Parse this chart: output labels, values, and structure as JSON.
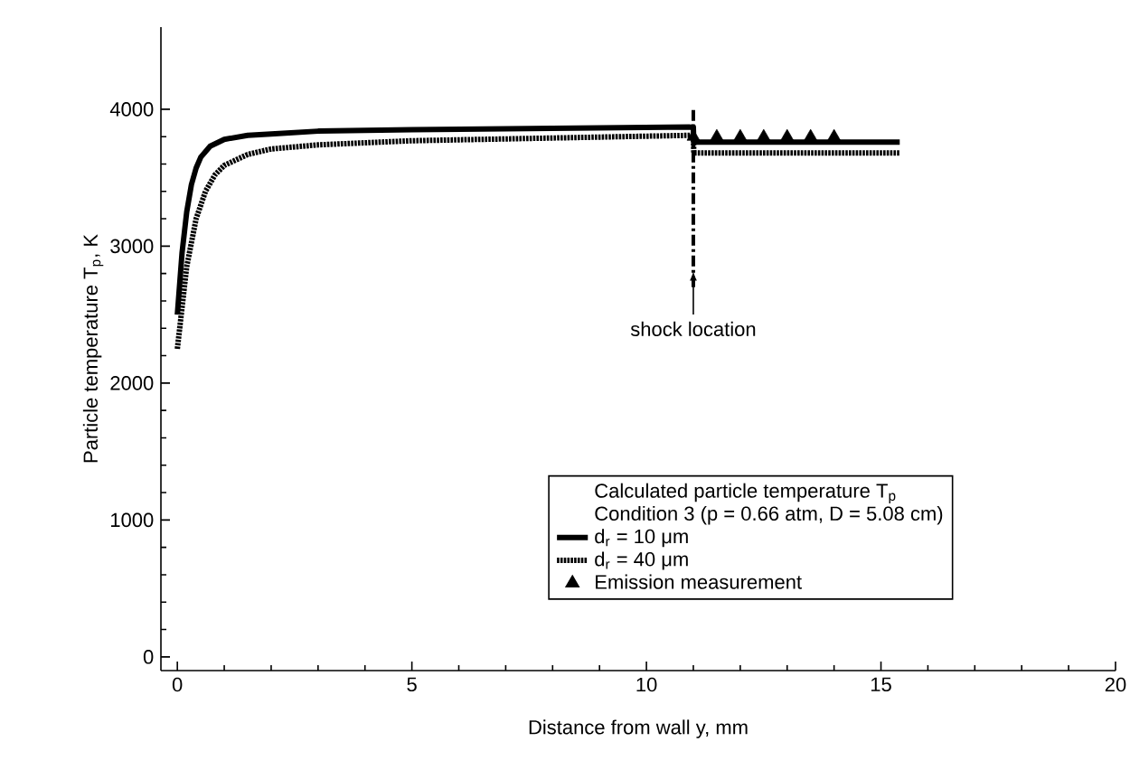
{
  "chart_data": {
    "type": "line",
    "xlabel": "Distance from wall y, mm",
    "ylabel": "Particle temperature T$_{p}$, K",
    "legend_title": "Calculated particle temperature T$_{p}$",
    "annotations": [
      "Condition 3 (p = 0.66 atm, D = 5.08 cm)"
    ],
    "xlim": [
      -0.35,
      20
    ],
    "ylim": [
      -100,
      4600
    ],
    "xticks": [
      0,
      5,
      10,
      15,
      20
    ],
    "yticks": [
      0,
      1000,
      2000,
      3000,
      4000
    ],
    "ref_lines": [
      {
        "axis": "x",
        "value": 11,
        "line_style": "dashdot",
        "color": "#000000",
        "label": "shock location"
      }
    ],
    "legend": "bottom right",
    "grid": false,
    "series": [
      {
        "name": "d$_{r}$ = 10 μm",
        "color": "#000000",
        "line_style": "solid",
        "x": [
          0,
          0.1,
          0.2,
          0.3,
          0.4,
          0.5,
          0.7,
          1,
          1.5,
          2,
          3,
          5,
          8,
          11,
          11.01,
          13,
          15.4
        ],
        "values": [
          2500,
          2950,
          3250,
          3450,
          3570,
          3650,
          3730,
          3780,
          3810,
          3820,
          3840,
          3850,
          3860,
          3870,
          3760,
          3760,
          3760
        ]
      },
      {
        "name": "d$_{r}$ = 40 μm",
        "color": "#000000",
        "line_style": "dotted",
        "x": [
          0,
          0.1,
          0.2,
          0.4,
          0.6,
          0.8,
          1,
          1.5,
          2,
          3,
          5,
          8,
          11,
          11.01,
          13,
          15.4
        ],
        "values": [
          2250,
          2550,
          2850,
          3200,
          3400,
          3520,
          3590,
          3670,
          3710,
          3740,
          3770,
          3790,
          3810,
          3680,
          3680,
          3680
        ]
      },
      {
        "name": "Emission measurement",
        "type": "scatter",
        "marker": "triangle",
        "color": "#000000",
        "x": [
          11,
          11.5,
          12,
          12.5,
          13,
          13.5,
          14
        ],
        "values": [
          3800,
          3800,
          3800,
          3800,
          3800,
          3800,
          3800
        ]
      }
    ]
  }
}
